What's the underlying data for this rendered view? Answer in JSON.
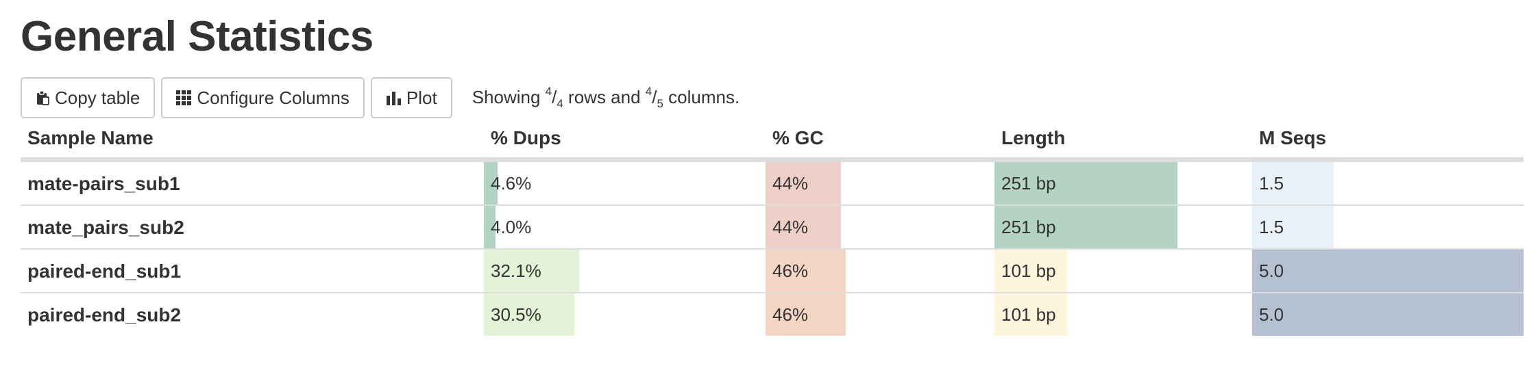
{
  "title": "General Statistics",
  "toolbar": {
    "copy_label": "Copy table",
    "configure_label": "Configure Columns",
    "plot_label": "Plot",
    "info": {
      "prefix": "Showing ",
      "rows_shown": "4",
      "rows_total": "4",
      "mid": " rows and ",
      "cols_shown": "4",
      "cols_total": "5",
      "suffix": " columns."
    }
  },
  "table": {
    "headers": [
      "Sample Name",
      "% Dups",
      "% GC",
      "Length",
      "M Seqs"
    ],
    "rows": [
      {
        "name": "mate-pairs_sub1",
        "dups": {
          "text": "4.6%",
          "value": 4.6
        },
        "gc": {
          "text": "44%",
          "value": 44
        },
        "length": {
          "text": "251 bp",
          "value": 251
        },
        "mseqs": {
          "text": "1.5",
          "value": 1.5
        }
      },
      {
        "name": "mate_pairs_sub2",
        "dups": {
          "text": "4.0%",
          "value": 4.0
        },
        "gc": {
          "text": "44%",
          "value": 44
        },
        "length": {
          "text": "251 bp",
          "value": 251
        },
        "mseqs": {
          "text": "1.5",
          "value": 1.5
        }
      },
      {
        "name": "paired-end_sub1",
        "dups": {
          "text": "32.1%",
          "value": 32.1
        },
        "gc": {
          "text": "46%",
          "value": 46
        },
        "length": {
          "text": "101 bp",
          "value": 101
        },
        "mseqs": {
          "text": "5.0",
          "value": 5.0
        }
      },
      {
        "name": "paired-end_sub2",
        "dups": {
          "text": "30.5%",
          "value": 30.5
        },
        "gc": {
          "text": "46%",
          "value": 46
        },
        "length": {
          "text": "101 bp",
          "value": 101
        },
        "mseqs": {
          "text": "5.0",
          "value": 5.0
        }
      }
    ]
  },
  "bar_colors": {
    "dups": [
      "#b3d4c4",
      "#b3d4c4",
      "#e4f2d8",
      "#e4f2d8"
    ],
    "gc": [
      "#efd0c9",
      "#efd0c9",
      "#f5d5c3",
      "#f5d5c3"
    ],
    "length": [
      "#b4d3c4",
      "#b4d3c4",
      "#fdf4dc",
      "#fdf4dc"
    ],
    "mseqs": [
      "#e8f0f8",
      "#e8f0f8",
      "#b5c1d3",
      "#b5c1d3"
    ]
  },
  "bar_fractions": {
    "dups": [
      0.049,
      0.041,
      0.337,
      0.32
    ],
    "gc": [
      0.33,
      0.33,
      0.35,
      0.35
    ],
    "length": [
      0.71,
      0.71,
      0.283,
      0.283
    ],
    "mseqs": [
      0.3,
      0.3,
      1.0,
      1.0
    ]
  }
}
